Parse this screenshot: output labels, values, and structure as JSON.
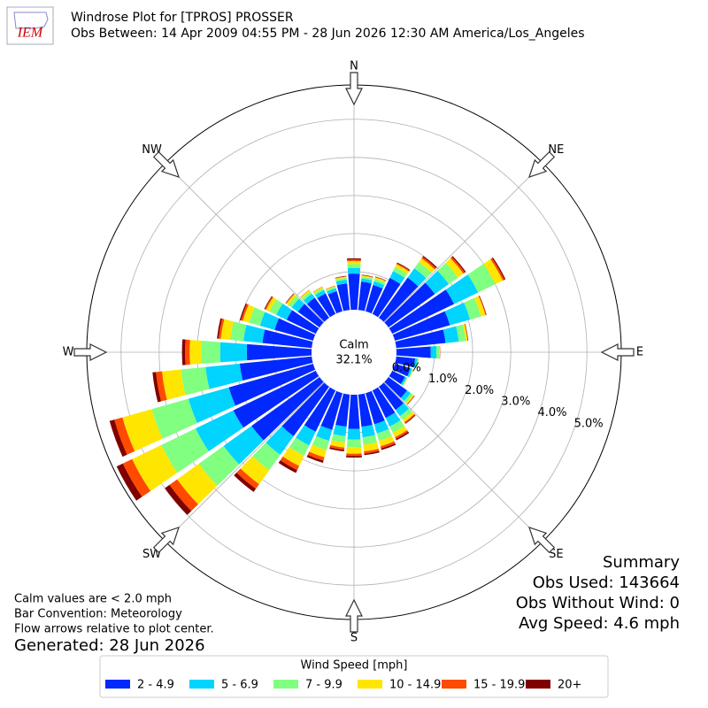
{
  "chart_data": {
    "type": "windrose",
    "logo_text": "IEM",
    "title": "Windrose Plot for [TPROS] PROSSER",
    "subtitle": "Obs Between: 14 Apr 2009 04:55 PM - 28 Jun 2026 12:30 AM America/Los_Angeles",
    "calm_label": "Calm",
    "calm_value": 32.1,
    "calm_value_label": "32.1%",
    "x": [
      0,
      10,
      20,
      30,
      40,
      50,
      60,
      70,
      80,
      90,
      100,
      110,
      120,
      130,
      140,
      150,
      160,
      170,
      180,
      190,
      200,
      210,
      220,
      230,
      240,
      250,
      260,
      270,
      280,
      290,
      300,
      310,
      320,
      330,
      340,
      350
    ],
    "xticks": [
      {
        "value": 0,
        "label": "N"
      },
      {
        "value": 45,
        "label": "NE"
      },
      {
        "value": 90,
        "label": "E"
      },
      {
        "value": 135,
        "label": "SE"
      },
      {
        "value": 180,
        "label": "S"
      },
      {
        "value": 225,
        "label": "SW"
      },
      {
        "value": 270,
        "label": "W"
      },
      {
        "value": 315,
        "label": "NW"
      }
    ],
    "ylim": [
      0,
      5.9
    ],
    "yticks": [
      {
        "value": 0,
        "label": "0.0%"
      },
      {
        "value": 1,
        "label": "1.0%"
      },
      {
        "value": 2,
        "label": "2.0%"
      },
      {
        "value": 3,
        "label": "3.0%"
      },
      {
        "value": 4,
        "label": "4.0%"
      },
      {
        "value": 5,
        "label": "5.0%"
      }
    ],
    "grid": true,
    "legend_title": "Wind Speed [mph]",
    "series": [
      {
        "name": "2 - 4.9",
        "color": "#0028ff",
        "values": [
          0.95,
          0.75,
          0.72,
          1.05,
          1.3,
          1.5,
          1.8,
          1.5,
          1.3,
          0.9,
          0.5,
          0.42,
          0.37,
          0.6,
          0.75,
          0.8,
          0.85,
          0.85,
          0.9,
          0.85,
          1.0,
          1.2,
          1.6,
          2.2,
          2.4,
          2.3,
          1.9,
          1.7,
          1.3,
          1.05,
          0.85,
          0.7,
          0.65,
          0.6,
          0.55,
          0.7
        ]
      },
      {
        "name": "5 - 6.9",
        "color": "#00d4ff",
        "values": [
          0.15,
          0.08,
          0.1,
          0.2,
          0.3,
          0.45,
          0.7,
          0.55,
          0.35,
          0.15,
          0.06,
          0.05,
          0.05,
          0.12,
          0.2,
          0.25,
          0.25,
          0.28,
          0.28,
          0.25,
          0.3,
          0.4,
          0.6,
          0.9,
          1.1,
          1.1,
          0.9,
          0.7,
          0.5,
          0.4,
          0.3,
          0.2,
          0.13,
          0.1,
          0.08,
          0.1
        ]
      },
      {
        "name": "7 - 9.9",
        "color": "#80ff80",
        "values": [
          0.1,
          0.05,
          0.07,
          0.12,
          0.2,
          0.3,
          0.5,
          0.3,
          0.18,
          0.07,
          0.03,
          0.02,
          0.02,
          0.07,
          0.12,
          0.18,
          0.2,
          0.2,
          0.2,
          0.17,
          0.25,
          0.3,
          0.5,
          0.8,
          1.0,
          1.0,
          0.65,
          0.5,
          0.35,
          0.3,
          0.2,
          0.1,
          0.07,
          0.06,
          0.04,
          0.05
        ]
      },
      {
        "name": "10 - 14.9",
        "color": "#ffe600",
        "values": [
          0.08,
          0.03,
          0.04,
          0.08,
          0.12,
          0.17,
          0.22,
          0.12,
          0.05,
          0.02,
          0.01,
          0.01,
          0.01,
          0.04,
          0.08,
          0.13,
          0.15,
          0.17,
          0.17,
          0.13,
          0.2,
          0.3,
          0.45,
          0.7,
          0.85,
          0.8,
          0.5,
          0.3,
          0.25,
          0.17,
          0.1,
          0.07,
          0.04,
          0.03,
          0.02,
          0.03
        ]
      },
      {
        "name": "15 - 19.9",
        "color": "#ff4a00",
        "values": [
          0.04,
          0.01,
          0.01,
          0.03,
          0.05,
          0.05,
          0.05,
          0.02,
          0.01,
          0.01,
          0,
          0,
          0,
          0.01,
          0.03,
          0.05,
          0.06,
          0.06,
          0.06,
          0.06,
          0.09,
          0.12,
          0.15,
          0.25,
          0.27,
          0.22,
          0.16,
          0.12,
          0.06,
          0.05,
          0.03,
          0.02,
          0.01,
          0.01,
          0.01,
          0.01
        ]
      },
      {
        "name": "20+",
        "color": "#800000",
        "values": [
          0.03,
          0.01,
          0.01,
          0.02,
          0.03,
          0.03,
          0.03,
          0.01,
          0.01,
          0,
          0,
          0,
          0,
          0.01,
          0.02,
          0.04,
          0.04,
          0.04,
          0.04,
          0.04,
          0.06,
          0.08,
          0.1,
          0.15,
          0.18,
          0.13,
          0.09,
          0.08,
          0.04,
          0.03,
          0.02,
          0.01,
          0,
          0,
          0,
          0.01
        ]
      }
    ],
    "notes": [
      "Calm values are < 2.0 mph",
      "Bar Convention: Meteorology",
      "Flow arrows relative to plot center."
    ],
    "generated": "Generated: 28 Jun 2026",
    "summary": [
      "Summary",
      "Obs Used: 143664",
      "Obs Without Wind: 0",
      "Avg Speed: 4.6 mph"
    ]
  }
}
